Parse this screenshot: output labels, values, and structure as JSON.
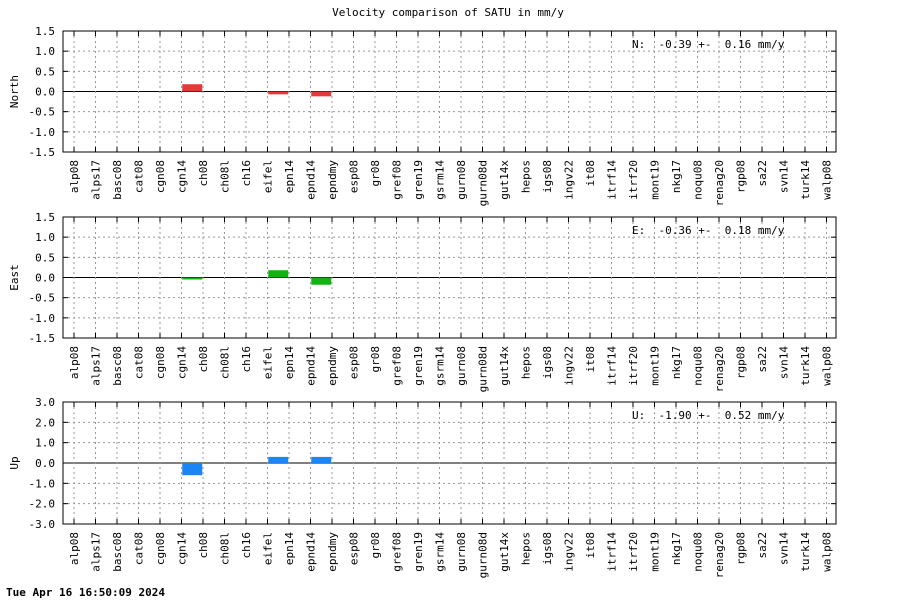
{
  "title": "Velocity comparison of SATU in mm/y",
  "footer": "Tue Apr 16 16:50:09 2024",
  "chart_data": [
    {
      "type": "bar",
      "ylabel": "North",
      "stat": "N:  -0.39 +-  0.16 mm/y",
      "ylim": [
        -1.5,
        1.5
      ],
      "yticks": [
        "1.5",
        "1.0",
        "0.5",
        "0.0",
        "-0.5",
        "-1.0",
        "-1.5"
      ],
      "color": "#e8383a",
      "categories": [
        "alp08",
        "alps17",
        "basc08",
        "cat08",
        "cgn08",
        "cgn14",
        "ch08",
        "ch08l",
        "ch16",
        "eifel",
        "epn14",
        "epnd14",
        "epndmy",
        "esp08",
        "gr08",
        "gref08",
        "gren19",
        "gsrm14",
        "gurn08",
        "gurn08d",
        "gut14x",
        "hepos",
        "igs08",
        "ingv22",
        "it08",
        "itrf14",
        "itrf20",
        "mont19",
        "nkg17",
        "noqu08",
        "renag20",
        "rgp08",
        "sa22",
        "svn14",
        "turk14",
        "walp08"
      ],
      "values": [
        null,
        null,
        null,
        null,
        null,
        0.18,
        null,
        null,
        null,
        -0.07,
        null,
        -0.12,
        null,
        null,
        null,
        null,
        null,
        null,
        null,
        null,
        null,
        null,
        null,
        null,
        null,
        null,
        null,
        null,
        null,
        null,
        null,
        null,
        null,
        null,
        null,
        null
      ],
      "grid": true
    },
    {
      "type": "bar",
      "ylabel": "East",
      "stat": "E:  -0.36 +-  0.18 mm/y",
      "ylim": [
        -1.5,
        1.5
      ],
      "yticks": [
        "1.5",
        "1.0",
        "0.5",
        "0.0",
        "-0.5",
        "-1.0",
        "-1.5"
      ],
      "color": "#11b411",
      "categories": [
        "alp08",
        "alps17",
        "basc08",
        "cat08",
        "cgn08",
        "cgn14",
        "ch08",
        "ch08l",
        "ch16",
        "eifel",
        "epn14",
        "epnd14",
        "epndmy",
        "esp08",
        "gr08",
        "gref08",
        "gren19",
        "gsrm14",
        "gurn08",
        "gurn08d",
        "gut14x",
        "hepos",
        "igs08",
        "ingv22",
        "it08",
        "itrf14",
        "itrf20",
        "mont19",
        "nkg17",
        "noqu08",
        "renag20",
        "rgp08",
        "sa22",
        "svn14",
        "turk14",
        "walp08"
      ],
      "values": [
        null,
        null,
        null,
        null,
        null,
        -0.05,
        null,
        null,
        null,
        0.18,
        null,
        -0.18,
        null,
        null,
        null,
        null,
        null,
        null,
        null,
        null,
        null,
        null,
        null,
        null,
        null,
        null,
        null,
        null,
        null,
        null,
        null,
        null,
        null,
        null,
        null,
        null
      ],
      "grid": true
    },
    {
      "type": "bar",
      "ylabel": "Up",
      "stat": "U:  -1.90 +-  0.52 mm/y",
      "ylim": [
        -3.0,
        3.0
      ],
      "yticks": [
        "3.0",
        "2.0",
        "1.0",
        "0.0",
        "-1.0",
        "-2.0",
        "-3.0"
      ],
      "color": "#1a85f5",
      "categories": [
        "alp08",
        "alps17",
        "basc08",
        "cat08",
        "cgn08",
        "cgn14",
        "ch08",
        "ch08l",
        "ch16",
        "eifel",
        "epn14",
        "epnd14",
        "epndmy",
        "esp08",
        "gr08",
        "gref08",
        "gren19",
        "gsrm14",
        "gurn08",
        "gurn08d",
        "gut14x",
        "hepos",
        "igs08",
        "ingv22",
        "it08",
        "itrf14",
        "itrf20",
        "mont19",
        "nkg17",
        "noqu08",
        "renag20",
        "rgp08",
        "sa22",
        "svn14",
        "turk14",
        "walp08"
      ],
      "values": [
        null,
        null,
        null,
        null,
        null,
        -0.6,
        null,
        null,
        null,
        0.3,
        null,
        0.3,
        null,
        null,
        null,
        null,
        null,
        null,
        null,
        null,
        null,
        null,
        null,
        null,
        null,
        null,
        null,
        null,
        null,
        null,
        null,
        null,
        null,
        null,
        null,
        null
      ],
      "grid": true
    }
  ]
}
